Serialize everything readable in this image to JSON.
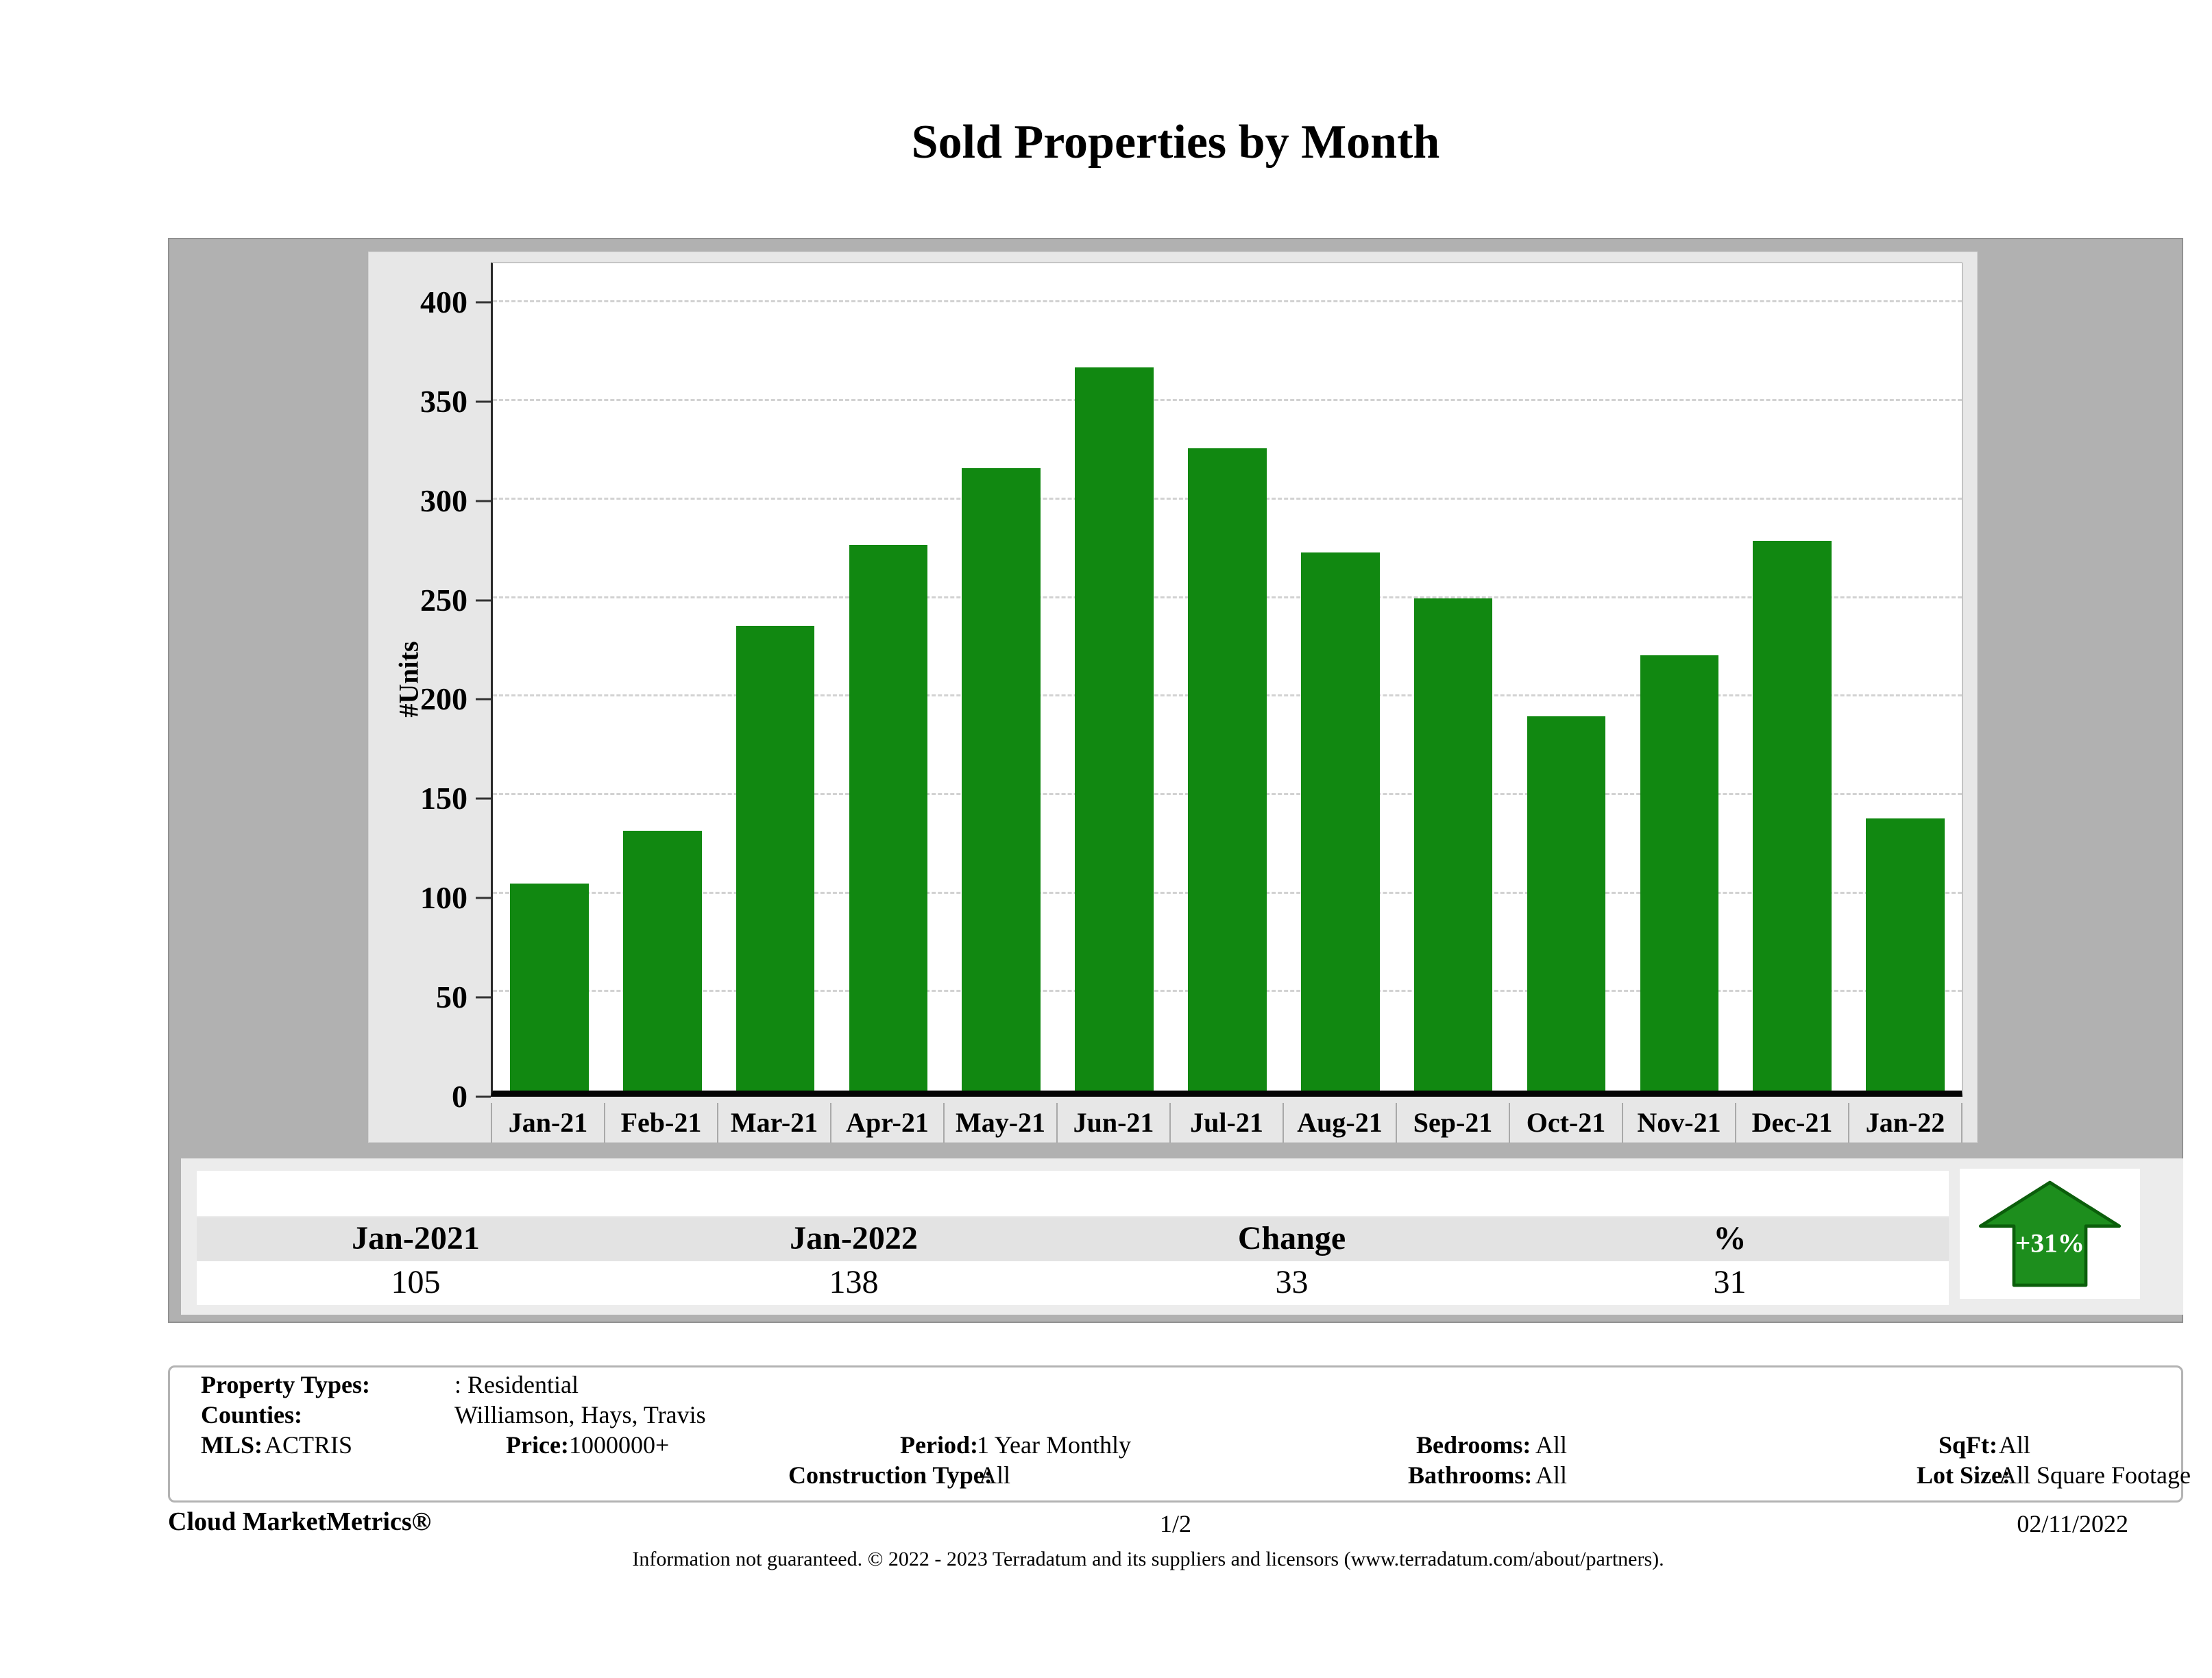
{
  "title": "Sold Properties by Month",
  "chart_data": {
    "type": "bar",
    "title": "Sold Properties by Month",
    "xlabel": "",
    "ylabel": "#Units",
    "categories": [
      "Jan-21",
      "Feb-21",
      "Mar-21",
      "Apr-21",
      "May-21",
      "Jun-21",
      "Jul-21",
      "Aug-21",
      "Sep-21",
      "Oct-21",
      "Nov-21",
      "Dec-21",
      "Jan-22"
    ],
    "values": [
      105,
      132,
      236,
      277,
      316,
      367,
      326,
      273,
      250,
      190,
      221,
      279,
      138
    ],
    "ylim": [
      0,
      420
    ],
    "yticks": [
      0,
      50,
      100,
      150,
      200,
      250,
      300,
      350,
      400
    ],
    "grid": "horizontal-dashed",
    "legend": "none",
    "bar_color": "#118811"
  },
  "summary_table": {
    "headers": [
      "Jan-2021",
      "Jan-2022",
      "Change",
      "%"
    ],
    "values": [
      "105",
      "138",
      "33",
      "31"
    ]
  },
  "change_badge": {
    "label": "+31%",
    "direction": "up",
    "color": "#1d8e1d",
    "border_color": "#0b5e0b",
    "text_color": "#ffffff"
  },
  "filters": {
    "property_types": {
      "label": "Property Types:",
      "value": ": Residential"
    },
    "counties": {
      "label": "Counties:",
      "value": "Williamson, Hays, Travis"
    },
    "mls": {
      "label": "MLS:",
      "value": "ACTRIS"
    },
    "price": {
      "label": "Price:",
      "value": "1000000+"
    },
    "period": {
      "label": "Period:",
      "value": "1 Year Monthly"
    },
    "construction_type": {
      "label": "Construction Type:",
      "value": "All"
    },
    "bedrooms": {
      "label": "Bedrooms:",
      "value": "All"
    },
    "bathrooms": {
      "label": "Bathrooms:",
      "value": "All"
    },
    "sqft": {
      "label": "SqFt:",
      "value": "All"
    },
    "lot_size": {
      "label": "Lot Size:",
      "value": "All Square Footage"
    }
  },
  "footer": {
    "brand": "Cloud MarketMetrics®",
    "page": "1/2",
    "date": "02/11/2022",
    "disclaimer": "Information not guaranteed. © 2022 - 2023 Terradatum and its suppliers and licensors (www.terradatum.com/about/partners)."
  }
}
